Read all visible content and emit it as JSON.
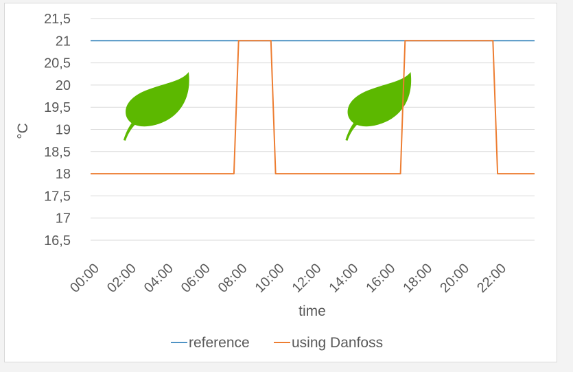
{
  "chart_data": {
    "type": "line",
    "title": "",
    "xlabel": "time",
    "ylabel": "°C",
    "ylim": [
      16.5,
      21.5
    ],
    "yticks": [
      "16,5",
      "17",
      "17,5",
      "18",
      "18,5",
      "19",
      "19,5",
      "20",
      "20,5",
      "21",
      "21,5"
    ],
    "xticks": [
      "00:00",
      "02:00",
      "04:00",
      "06:00",
      "08:00",
      "10:00",
      "12:00",
      "14:00",
      "16:00",
      "18:00",
      "20:00",
      "22:00"
    ],
    "grid": true,
    "legend_position": "bottom",
    "series": [
      {
        "name": "reference",
        "color": "#4f93c4",
        "points": [
          {
            "x": "00:00",
            "y": 21
          },
          {
            "x": "24:00",
            "y": 21
          }
        ]
      },
      {
        "name": "using Danfoss",
        "color": "#ed7d31",
        "points": [
          {
            "x": "00:00",
            "y": 18
          },
          {
            "x": "07:45",
            "y": 18
          },
          {
            "x": "08:00",
            "y": 21
          },
          {
            "x": "09:45",
            "y": 21
          },
          {
            "x": "10:00",
            "y": 18
          },
          {
            "x": "16:45",
            "y": 18
          },
          {
            "x": "17:00",
            "y": 21
          },
          {
            "x": "21:45",
            "y": 21
          },
          {
            "x": "22:00",
            "y": 18
          },
          {
            "x": "24:00",
            "y": 18
          }
        ]
      }
    ],
    "icons": [
      "leaf-icon",
      "leaf-icon"
    ],
    "icon_color": "#5cb800",
    "grid_color": "#d9d9d9"
  }
}
